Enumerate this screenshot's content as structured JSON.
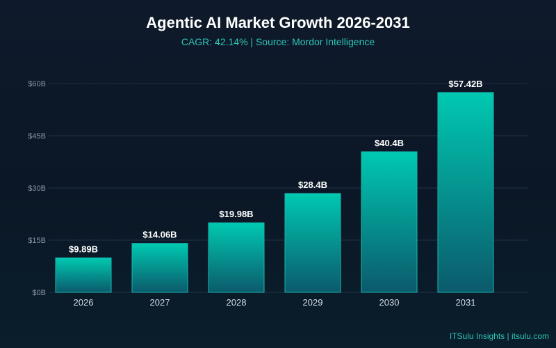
{
  "chart_data": {
    "type": "bar",
    "title": "Agentic AI Market Growth 2026-2031",
    "subtitle": "CAGR: 42.14% | Source: Mordor Intelligence",
    "xlabel": "",
    "ylabel": "",
    "categories": [
      "2026",
      "2027",
      "2028",
      "2029",
      "2030",
      "2031"
    ],
    "values": [
      9.89,
      14.06,
      19.98,
      28.4,
      40.4,
      57.42
    ],
    "data_labels": [
      "$9.89B",
      "$14.06B",
      "$19.98B",
      "$28.4B",
      "$40.4B",
      "$57.42B"
    ],
    "ylim": [
      0,
      60
    ],
    "yticks": [
      0,
      15,
      30,
      45,
      60
    ],
    "ytick_labels": [
      "$0B",
      "$15B",
      "$30B",
      "$45B",
      "$60B"
    ],
    "grid": true,
    "legend": "none",
    "colors": {
      "bar_top": "#00c9b1",
      "bar_bottom": "#0b5a6b",
      "bar_edge": "#17b8b0",
      "grid": "#1f3346",
      "tick_text": "#8a94a6",
      "category_text": "#d6dde8",
      "data_label": "#ffffff",
      "title": "#ffffff",
      "subtitle": "#2ec4b6"
    }
  },
  "footer": {
    "credit": "ITSulu Insights | itsulu.com"
  }
}
